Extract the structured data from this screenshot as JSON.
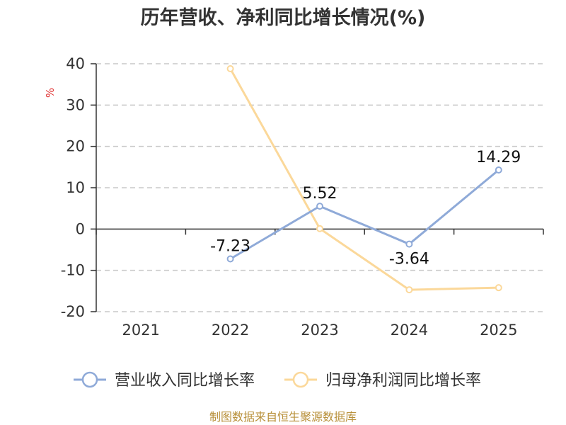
{
  "chart_data": {
    "type": "line",
    "title": "历年营收、净利同比增长情况(%)",
    "ylabel": "%",
    "categories": [
      "2021",
      "2022",
      "2023",
      "2024",
      "2025"
    ],
    "ylim": [
      -20,
      40
    ],
    "yticks": [
      -20,
      -10,
      0,
      10,
      20,
      30,
      40
    ],
    "grid": true,
    "legend_position": "bottom",
    "series": [
      {
        "name": "营业收入同比增长率",
        "color": "#8faad8",
        "values": [
          null,
          -7.23,
          5.52,
          -3.64,
          14.29
        ],
        "labels": [
          null,
          "-7.23",
          "5.52",
          "-3.64",
          "14.29"
        ]
      },
      {
        "name": "归母净利润同比增长率",
        "color": "#fbd89a",
        "values": [
          null,
          38.8,
          0.1,
          -14.7,
          -14.2
        ],
        "labels": [
          null,
          null,
          null,
          null,
          null
        ]
      }
    ]
  },
  "footer": {
    "source": "制图数据来自恒生聚源数据库"
  }
}
